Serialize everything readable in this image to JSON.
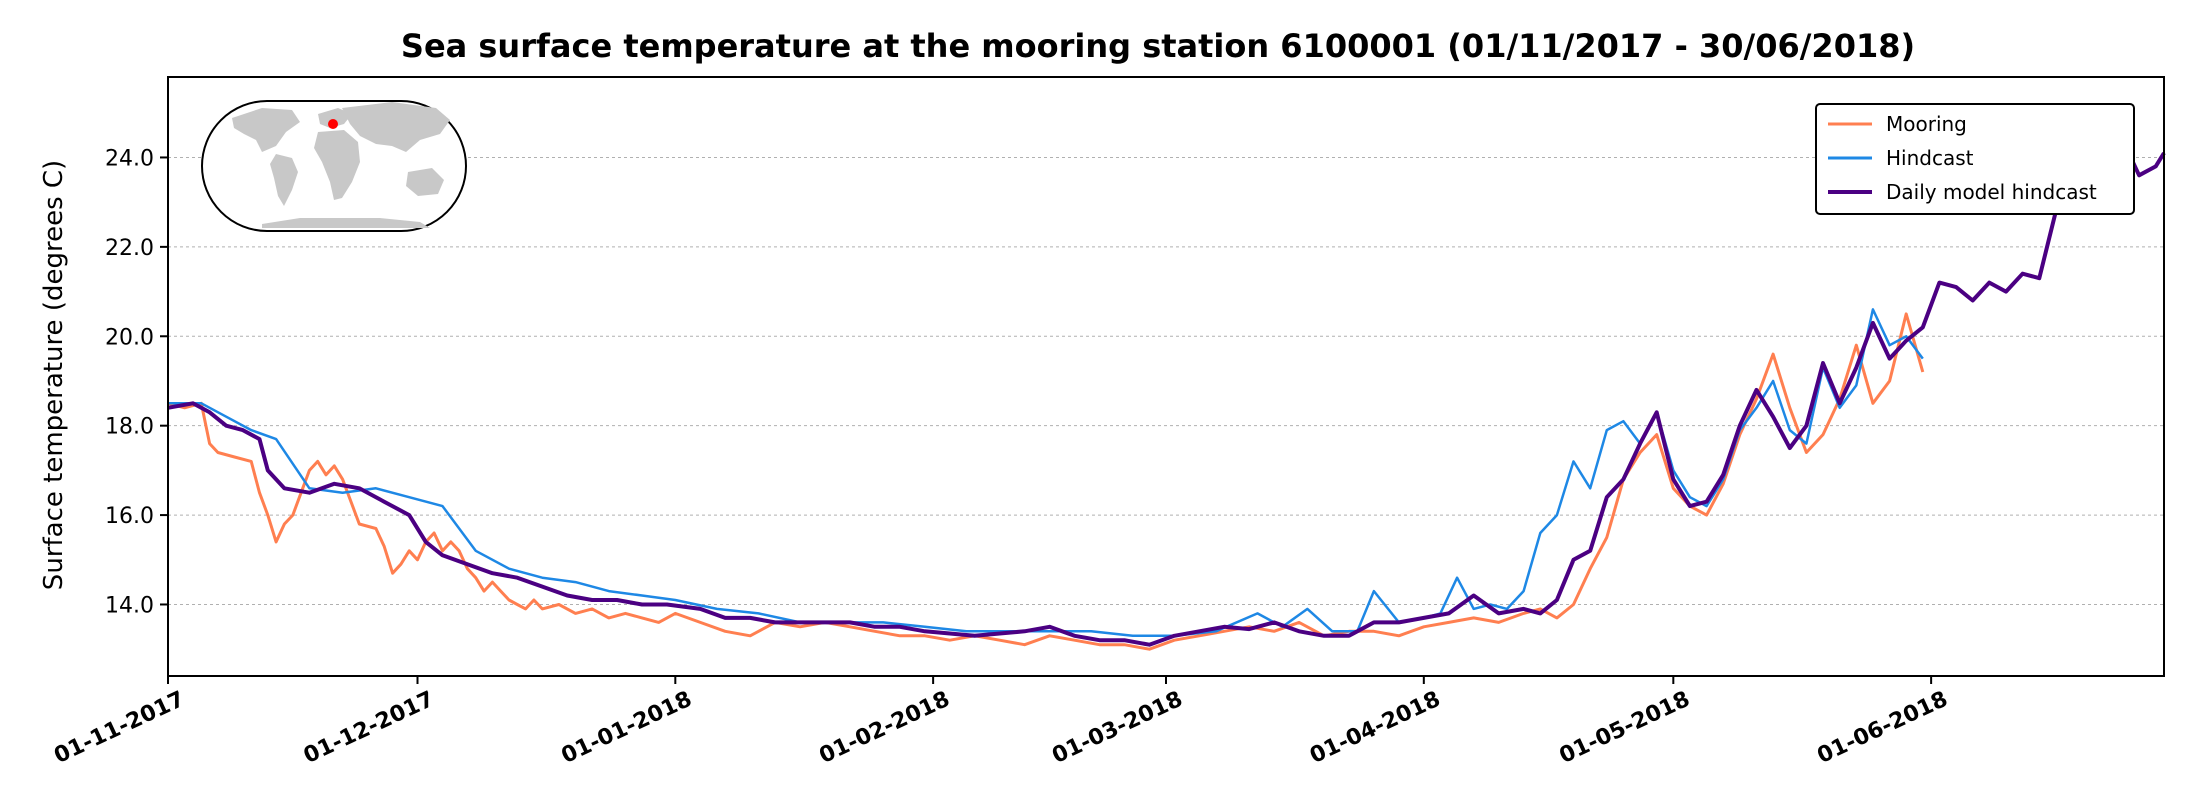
{
  "chart_data": {
    "type": "line",
    "title": "Sea surface temperature at the mooring station 6100001 (01/11/2017 - 30/06/2018)",
    "ylabel": "Surface temperature (degrees C)",
    "xlabel": "",
    "xlim": [
      "2017-11-01",
      "2018-06-29"
    ],
    "ylim": [
      12.4,
      25.8
    ],
    "yticks": [
      14.0,
      16.0,
      18.0,
      20.0,
      22.0,
      24.0
    ],
    "ytick_labels": [
      "14.0",
      "16.0",
      "18.0",
      "20.0",
      "22.0",
      "24.0"
    ],
    "xticks": [
      "2017-11-01",
      "2017-12-01",
      "2018-01-01",
      "2018-02-01",
      "2018-03-01",
      "2018-04-01",
      "2018-05-01",
      "2018-06-01"
    ],
    "xtick_labels": [
      "01-11-2017",
      "01-12-2017",
      "01-01-2018",
      "01-02-2018",
      "01-03-2018",
      "01-04-2018",
      "01-05-2018",
      "01-06-2018"
    ],
    "grid": "horizontal dotted",
    "legend_position": "top-right",
    "inset_map": {
      "marker_color": "#ff0000",
      "marker_location": "Mediterranean Sea"
    },
    "series": [
      {
        "name": "Mooring",
        "color": "#ff7f50",
        "x": [
          "2017-11-01",
          "2017-11-03",
          "2017-11-05",
          "2017-11-06",
          "2017-11-07",
          "2017-11-09",
          "2017-11-11",
          "2017-11-12",
          "2017-11-13",
          "2017-11-14",
          "2017-11-15",
          "2017-11-16",
          "2017-11-17",
          "2017-11-18",
          "2017-11-19",
          "2017-11-20",
          "2017-11-21",
          "2017-11-22",
          "2017-11-24",
          "2017-11-26",
          "2017-11-27",
          "2017-11-28",
          "2017-11-29",
          "2017-11-30",
          "2017-12-01",
          "2017-12-02",
          "2017-12-03",
          "2017-12-04",
          "2017-12-05",
          "2017-12-06",
          "2017-12-07",
          "2017-12-08",
          "2017-12-09",
          "2017-12-10",
          "2017-12-11",
          "2017-12-12",
          "2017-12-13",
          "2017-12-14",
          "2017-12-15",
          "2017-12-16",
          "2017-12-18",
          "2017-12-20",
          "2017-12-22",
          "2017-12-24",
          "2017-12-26",
          "2017-12-28",
          "2017-12-30",
          "2018-01-01",
          "2018-01-04",
          "2018-01-07",
          "2018-01-10",
          "2018-01-13",
          "2018-01-16",
          "2018-01-19",
          "2018-01-22",
          "2018-01-25",
          "2018-01-28",
          "2018-01-31",
          "2018-02-03",
          "2018-02-06",
          "2018-02-09",
          "2018-02-12",
          "2018-02-15",
          "2018-02-18",
          "2018-02-21",
          "2018-02-24",
          "2018-02-27",
          "2018-03-02",
          "2018-03-05",
          "2018-03-08",
          "2018-03-11",
          "2018-03-14",
          "2018-03-17",
          "2018-03-20",
          "2018-03-23",
          "2018-03-26",
          "2018-03-29",
          "2018-04-01",
          "2018-04-04",
          "2018-04-07",
          "2018-04-10",
          "2018-04-13",
          "2018-04-15",
          "2018-04-17",
          "2018-04-19",
          "2018-04-21",
          "2018-04-23",
          "2018-04-25",
          "2018-04-27",
          "2018-04-29",
          "2018-05-01",
          "2018-05-03",
          "2018-05-05",
          "2018-05-07",
          "2018-05-09",
          "2018-05-11",
          "2018-05-13",
          "2018-05-15",
          "2018-05-17",
          "2018-05-19",
          "2018-05-21",
          "2018-05-23",
          "2018-05-25",
          "2018-05-27",
          "2018-05-29",
          "2018-05-31"
        ],
        "y": [
          18.5,
          18.4,
          18.5,
          17.6,
          17.4,
          17.3,
          17.2,
          16.5,
          16.0,
          15.4,
          15.8,
          16.0,
          16.5,
          17.0,
          17.2,
          16.9,
          17.1,
          16.8,
          15.8,
          15.7,
          15.3,
          14.7,
          14.9,
          15.2,
          15.0,
          15.4,
          15.6,
          15.2,
          15.4,
          15.2,
          14.8,
          14.6,
          14.3,
          14.5,
          14.3,
          14.1,
          14.0,
          13.9,
          14.1,
          13.9,
          14.0,
          13.8,
          13.9,
          13.7,
          13.8,
          13.7,
          13.6,
          13.8,
          13.6,
          13.4,
          13.3,
          13.6,
          13.5,
          13.6,
          13.5,
          13.4,
          13.3,
          13.3,
          13.2,
          13.3,
          13.2,
          13.1,
          13.3,
          13.2,
          13.1,
          13.1,
          13.0,
          13.2,
          13.3,
          13.4,
          13.5,
          13.4,
          13.6,
          13.3,
          13.4,
          13.4,
          13.3,
          13.5,
          13.6,
          13.7,
          13.6,
          13.8,
          13.9,
          13.7,
          14.0,
          14.8,
          15.5,
          16.8,
          17.4,
          17.8,
          16.6,
          16.2,
          16.0,
          16.7,
          17.8,
          18.6,
          19.6,
          18.4,
          17.4,
          17.8,
          18.6,
          19.8,
          18.5,
          19.0,
          20.5,
          19.2
        ]
      },
      {
        "name": "Hindcast",
        "color": "#1e88e5",
        "x": [
          "2017-11-01",
          "2017-11-05",
          "2017-11-08",
          "2017-11-11",
          "2017-11-14",
          "2017-11-18",
          "2017-11-22",
          "2017-11-26",
          "2017-11-30",
          "2017-12-04",
          "2017-12-08",
          "2017-12-12",
          "2017-12-16",
          "2017-12-20",
          "2017-12-24",
          "2017-12-28",
          "2018-01-01",
          "2018-01-06",
          "2018-01-11",
          "2018-01-16",
          "2018-01-21",
          "2018-01-26",
          "2018-01-31",
          "2018-02-05",
          "2018-02-10",
          "2018-02-15",
          "2018-02-20",
          "2018-02-25",
          "2018-03-02",
          "2018-03-07",
          "2018-03-12",
          "2018-03-15",
          "2018-03-18",
          "2018-03-21",
          "2018-03-24",
          "2018-03-26",
          "2018-03-29",
          "2018-04-01",
          "2018-04-03",
          "2018-04-05",
          "2018-04-07",
          "2018-04-09",
          "2018-04-11",
          "2018-04-13",
          "2018-04-15",
          "2018-04-17",
          "2018-04-19",
          "2018-04-21",
          "2018-04-23",
          "2018-04-25",
          "2018-04-27",
          "2018-04-29",
          "2018-05-01",
          "2018-05-03",
          "2018-05-05",
          "2018-05-07",
          "2018-05-09",
          "2018-05-11",
          "2018-05-13",
          "2018-05-15",
          "2018-05-17",
          "2018-05-19",
          "2018-05-21",
          "2018-05-23",
          "2018-05-25",
          "2018-05-27",
          "2018-05-29",
          "2018-05-31"
        ],
        "y": [
          18.5,
          18.5,
          18.2,
          17.9,
          17.7,
          16.6,
          16.5,
          16.6,
          16.4,
          16.2,
          15.2,
          14.8,
          14.6,
          14.5,
          14.3,
          14.2,
          14.1,
          13.9,
          13.8,
          13.6,
          13.6,
          13.6,
          13.5,
          13.4,
          13.4,
          13.4,
          13.4,
          13.3,
          13.3,
          13.4,
          13.8,
          13.5,
          13.9,
          13.4,
          13.4,
          14.3,
          13.6,
          13.7,
          13.8,
          14.6,
          13.9,
          14.0,
          13.9,
          14.3,
          15.6,
          16.0,
          17.2,
          16.6,
          17.9,
          18.1,
          17.6,
          18.3,
          17.0,
          16.4,
          16.2,
          16.8,
          17.9,
          18.4,
          19.0,
          17.9,
          17.6,
          19.3,
          18.4,
          18.9,
          20.6,
          19.8,
          20.0,
          19.5
        ]
      },
      {
        "name": "Daily model hindcast",
        "color": "#4b0082",
        "x": [
          "2017-11-01",
          "2017-11-04",
          "2017-11-06",
          "2017-11-08",
          "2017-11-10",
          "2017-11-12",
          "2017-11-13",
          "2017-11-15",
          "2017-11-18",
          "2017-11-21",
          "2017-11-24",
          "2017-11-27",
          "2017-11-30",
          "2017-12-02",
          "2017-12-04",
          "2017-12-07",
          "2017-12-10",
          "2017-12-13",
          "2017-12-16",
          "2017-12-19",
          "2017-12-22",
          "2017-12-25",
          "2017-12-28",
          "2017-12-31",
          "2018-01-04",
          "2018-01-07",
          "2018-01-10",
          "2018-01-13",
          "2018-01-16",
          "2018-01-19",
          "2018-01-22",
          "2018-01-25",
          "2018-01-28",
          "2018-01-31",
          "2018-02-03",
          "2018-02-06",
          "2018-02-09",
          "2018-02-12",
          "2018-02-15",
          "2018-02-18",
          "2018-02-21",
          "2018-02-24",
          "2018-02-27",
          "2018-03-02",
          "2018-03-05",
          "2018-03-08",
          "2018-03-11",
          "2018-03-14",
          "2018-03-17",
          "2018-03-20",
          "2018-03-23",
          "2018-03-26",
          "2018-03-29",
          "2018-04-01",
          "2018-04-04",
          "2018-04-07",
          "2018-04-10",
          "2018-04-13",
          "2018-04-15",
          "2018-04-17",
          "2018-04-19",
          "2018-04-21",
          "2018-04-23",
          "2018-04-25",
          "2018-04-27",
          "2018-04-29",
          "2018-05-01",
          "2018-05-03",
          "2018-05-05",
          "2018-05-07",
          "2018-05-09",
          "2018-05-11",
          "2018-05-13",
          "2018-05-15",
          "2018-05-17",
          "2018-05-19",
          "2018-05-21",
          "2018-05-23",
          "2018-05-25",
          "2018-05-27",
          "2018-05-29",
          "2018-05-31",
          "2018-06-02",
          "2018-06-04",
          "2018-06-06",
          "2018-06-08",
          "2018-06-10",
          "2018-06-12",
          "2018-06-14",
          "2018-06-16",
          "2018-06-18",
          "2018-06-20",
          "2018-06-22",
          "2018-06-24",
          "2018-06-26",
          "2018-06-28",
          "2018-06-29"
        ],
        "y": [
          18.4,
          18.5,
          18.3,
          18.0,
          17.9,
          17.7,
          17.0,
          16.6,
          16.5,
          16.7,
          16.6,
          16.3,
          16.0,
          15.4,
          15.1,
          14.9,
          14.7,
          14.6,
          14.4,
          14.2,
          14.1,
          14.1,
          14.0,
          14.0,
          13.9,
          13.7,
          13.7,
          13.6,
          13.6,
          13.6,
          13.6,
          13.5,
          13.5,
          13.4,
          13.35,
          13.3,
          13.35,
          13.4,
          13.5,
          13.3,
          13.2,
          13.2,
          13.1,
          13.3,
          13.4,
          13.5,
          13.45,
          13.6,
          13.4,
          13.3,
          13.3,
          13.6,
          13.6,
          13.7,
          13.8,
          14.2,
          13.8,
          13.9,
          13.8,
          14.1,
          15.0,
          15.2,
          16.4,
          16.8,
          17.6,
          18.3,
          16.8,
          16.2,
          16.3,
          16.9,
          18.0,
          18.8,
          18.2,
          17.5,
          18.0,
          19.4,
          18.5,
          19.3,
          20.3,
          19.5,
          19.9,
          20.2,
          21.2,
          21.1,
          20.8,
          21.2,
          21.0,
          21.4,
          21.3,
          22.8,
          23.4,
          24.2,
          24.8,
          24.4,
          23.6,
          23.8,
          24.1
        ]
      }
    ]
  }
}
